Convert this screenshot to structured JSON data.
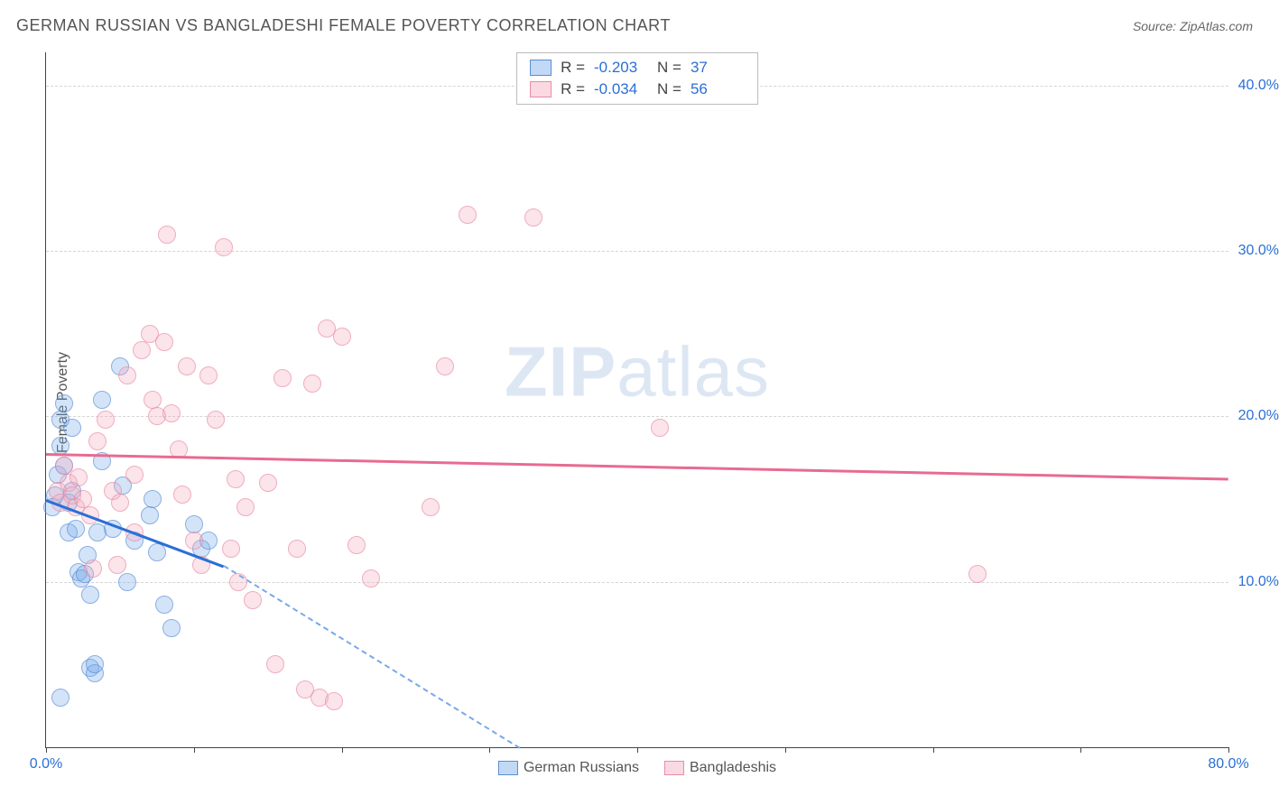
{
  "title": "GERMAN RUSSIAN VS BANGLADESHI FEMALE POVERTY CORRELATION CHART",
  "source_label": "Source: ",
  "source_name": "ZipAtlas.com",
  "ylabel": "Female Poverty",
  "watermark": {
    "part1": "ZIP",
    "part2": "atlas"
  },
  "chart": {
    "type": "scatter",
    "xlim": [
      0,
      80
    ],
    "ylim": [
      0,
      42
    ],
    "x_ticks": [
      0,
      10,
      20,
      30,
      40,
      50,
      60,
      70,
      80
    ],
    "x_tick_labels": {
      "0": "0.0%",
      "80": "80.0%"
    },
    "y_gridlines": [
      10,
      20,
      30,
      40
    ],
    "y_tick_labels": {
      "10": "10.0%",
      "20": "20.0%",
      "30": "30.0%",
      "40": "40.0%"
    },
    "background_color": "#ffffff",
    "grid_color": "#d5d5d5",
    "axis_color": "#444444",
    "tick_label_color": "#2a6fd6",
    "marker_radius": 9,
    "series": [
      {
        "name": "German Russians",
        "color_fill": "rgba(120,170,235,0.45)",
        "color_stroke": "#5a8cd6",
        "trend_color": "#2a6fd6",
        "R": "-0.203",
        "N": "37",
        "trend": {
          "x1": 0,
          "y1": 15.0,
          "x2_solid": 12,
          "y2_solid": 11.0,
          "x2_dash": 32,
          "y2_dash": 0
        },
        "points": [
          [
            0.4,
            14.5
          ],
          [
            0.6,
            15.2
          ],
          [
            0.8,
            16.5
          ],
          [
            1.0,
            18.2
          ],
          [
            1.0,
            19.8
          ],
          [
            1.2,
            20.8
          ],
          [
            1.2,
            17.0
          ],
          [
            1.5,
            14.8
          ],
          [
            1.5,
            13.0
          ],
          [
            1.8,
            15.5
          ],
          [
            1.8,
            19.3
          ],
          [
            2.0,
            13.2
          ],
          [
            2.2,
            10.6
          ],
          [
            2.4,
            10.2
          ],
          [
            2.6,
            10.5
          ],
          [
            2.8,
            11.6
          ],
          [
            3.0,
            9.2
          ],
          [
            3.0,
            4.8
          ],
          [
            3.3,
            4.5
          ],
          [
            3.3,
            5.0
          ],
          [
            3.5,
            13.0
          ],
          [
            3.8,
            21.0
          ],
          [
            3.8,
            17.3
          ],
          [
            4.5,
            13.2
          ],
          [
            5.0,
            23.0
          ],
          [
            5.2,
            15.8
          ],
          [
            5.5,
            10.0
          ],
          [
            6.0,
            12.5
          ],
          [
            7.0,
            14.0
          ],
          [
            7.2,
            15.0
          ],
          [
            7.5,
            11.8
          ],
          [
            8.0,
            8.6
          ],
          [
            8.5,
            7.2
          ],
          [
            10.0,
            13.5
          ],
          [
            10.5,
            12.0
          ],
          [
            11.0,
            12.5
          ],
          [
            1.0,
            3.0
          ]
        ]
      },
      {
        "name": "Bangladeshis",
        "color_fill": "rgba(245,170,190,0.45)",
        "color_stroke": "#e88ba5",
        "trend_color": "#e86b91",
        "R": "-0.034",
        "N": "56",
        "trend": {
          "x1": 0,
          "y1": 17.8,
          "x2_solid": 80,
          "y2_solid": 16.3
        },
        "points": [
          [
            0.8,
            15.5
          ],
          [
            1.0,
            14.8
          ],
          [
            1.2,
            17.0
          ],
          [
            1.5,
            16.0
          ],
          [
            1.8,
            15.2
          ],
          [
            2.0,
            14.5
          ],
          [
            2.2,
            16.3
          ],
          [
            2.5,
            15.0
          ],
          [
            3.0,
            14.0
          ],
          [
            3.5,
            18.5
          ],
          [
            4.0,
            19.8
          ],
          [
            4.5,
            15.5
          ],
          [
            5.0,
            14.8
          ],
          [
            5.5,
            22.5
          ],
          [
            6.0,
            13.0
          ],
          [
            6.5,
            24.0
          ],
          [
            7.0,
            25.0
          ],
          [
            7.2,
            21.0
          ],
          [
            7.5,
            20.0
          ],
          [
            8.0,
            24.5
          ],
          [
            8.2,
            31.0
          ],
          [
            8.5,
            20.2
          ],
          [
            9.0,
            18.0
          ],
          [
            9.5,
            23.0
          ],
          [
            10.0,
            12.5
          ],
          [
            10.5,
            11.0
          ],
          [
            11.0,
            22.5
          ],
          [
            11.5,
            19.8
          ],
          [
            12.0,
            30.2
          ],
          [
            12.5,
            12.0
          ],
          [
            13.0,
            10.0
          ],
          [
            13.5,
            14.5
          ],
          [
            14.0,
            8.9
          ],
          [
            15.0,
            16.0
          ],
          [
            16.0,
            22.3
          ],
          [
            17.0,
            12.0
          ],
          [
            18.0,
            22.0
          ],
          [
            19.0,
            25.3
          ],
          [
            20.0,
            24.8
          ],
          [
            21.0,
            12.2
          ],
          [
            22.0,
            10.2
          ],
          [
            15.5,
            5.0
          ],
          [
            17.5,
            3.5
          ],
          [
            18.5,
            3.0
          ],
          [
            19.5,
            2.8
          ],
          [
            26.0,
            14.5
          ],
          [
            27.0,
            23.0
          ],
          [
            28.5,
            32.2
          ],
          [
            33.0,
            32.0
          ],
          [
            41.5,
            19.3
          ],
          [
            63.0,
            10.5
          ],
          [
            4.8,
            11.0
          ],
          [
            3.2,
            10.8
          ],
          [
            6.0,
            16.5
          ],
          [
            9.2,
            15.3
          ],
          [
            12.8,
            16.2
          ]
        ]
      }
    ]
  },
  "legend_top_labels": {
    "R": "R =",
    "N": "N ="
  },
  "legend_bottom": [
    {
      "series": 0,
      "label": "German Russians"
    },
    {
      "series": 1,
      "label": "Bangladeshis"
    }
  ]
}
